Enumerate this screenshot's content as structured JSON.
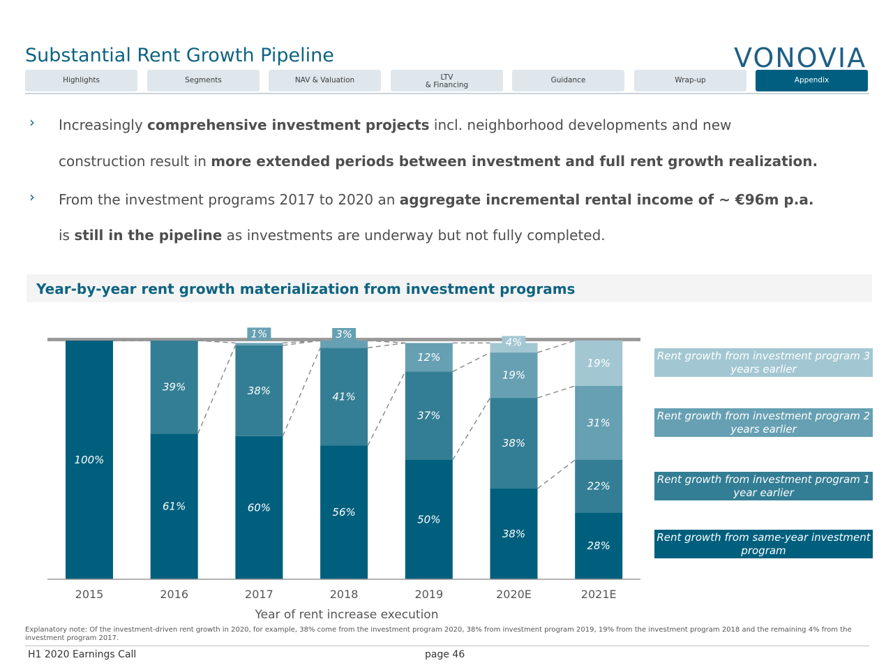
{
  "header": {
    "title": "Substantial Rent Growth Pipeline",
    "logo_text": "VONOVIA"
  },
  "nav": {
    "tabs": [
      {
        "label": "Highlights",
        "active": false
      },
      {
        "label": "Segments",
        "active": false
      },
      {
        "label": "NAV & Valuation",
        "active": false
      },
      {
        "label": "LTV\n& Financing",
        "active": false
      },
      {
        "label": "Guidance",
        "active": false
      },
      {
        "label": "Wrap-up",
        "active": false
      },
      {
        "label": "Appendix",
        "active": true
      }
    ]
  },
  "bullets": [
    {
      "line1": [
        {
          "t": "Increasingly ",
          "b": false
        },
        {
          "t": "comprehensive investment projects",
          "b": true
        },
        {
          "t": " incl. neighborhood developments and new",
          "b": false
        }
      ],
      "line2": [
        {
          "t": "construction result in ",
          "b": false
        },
        {
          "t": "more extended periods between investment and full rent growth realization.",
          "b": true
        }
      ]
    },
    {
      "line1": [
        {
          "t": "From the investment programs 2017 to 2020 an ",
          "b": false
        },
        {
          "t": "aggregate incremental rental income of ~ €96m p.a.",
          "b": true
        }
      ],
      "line2": [
        {
          "t": "is ",
          "b": false
        },
        {
          "t": "still in the pipeline",
          "b": true
        },
        {
          "t": " as investments are underway but not fully completed.",
          "b": false
        }
      ]
    }
  ],
  "section_heading": "Year-by-year rent growth materialization from investment programs",
  "colors": {
    "same_year": "#005f7d",
    "one_year": "#337e94",
    "two_years": "#66a0b2",
    "three_years": "#a3c7d2",
    "title": "#0e6381"
  },
  "chart_data": {
    "type": "bar",
    "stacked": true,
    "xlabel": "Year of rent increase execution",
    "ylabel": "",
    "ylim": [
      0,
      100
    ],
    "categories": [
      "2015",
      "2016",
      "2017",
      "2018",
      "2019",
      "2020E",
      "2021E"
    ],
    "series": [
      {
        "name": "Rent growth from same-year investment program",
        "values": [
          100,
          61,
          60,
          56,
          50,
          38,
          28
        ]
      },
      {
        "name": "Rent growth from investment program 1 year earlier",
        "values": [
          0,
          39,
          38,
          41,
          37,
          38,
          22
        ]
      },
      {
        "name": "Rent growth from investment program 2 years earlier",
        "values": [
          0,
          0,
          1,
          3,
          12,
          19,
          31
        ]
      },
      {
        "name": "Rent growth from investment program 3 years earlier",
        "values": [
          0,
          0,
          0,
          0,
          0,
          4,
          19
        ]
      }
    ],
    "legend_placement": "right"
  },
  "footnote": "Explanatory note: Of the investment-driven rent growth in 2020, for example, 38% come from the investment program 2020, 38% from investment program 2019, 19% from the investment program 2018 and the remaining 4% from the investment program 2017.",
  "footer": {
    "event": "H1 2020 Earnings Call",
    "page": "page 46"
  }
}
